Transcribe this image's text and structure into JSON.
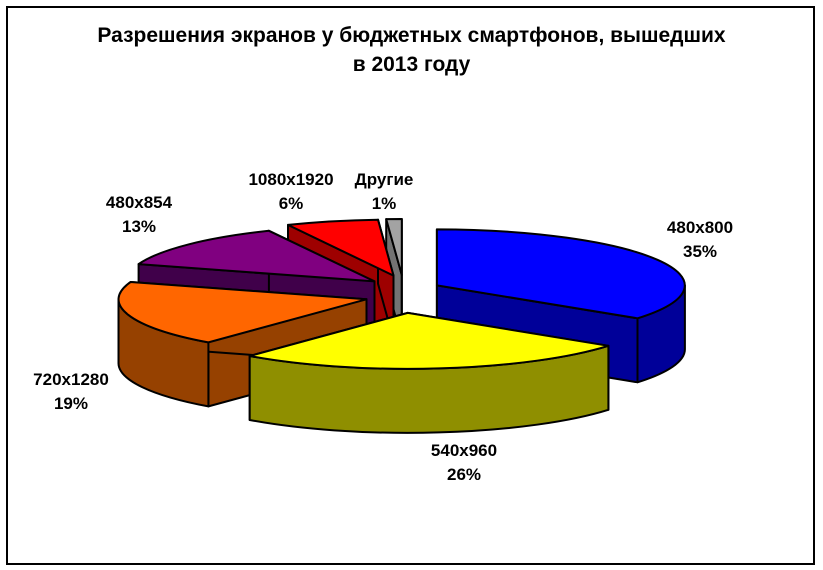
{
  "title": {
    "line1": "Разрешения экранов у бюджетных смартфонов, вышедших",
    "line2": "в 2013 году"
  },
  "chart_data": {
    "type": "pie",
    "style": "3d-exploded-pie",
    "title": "Разрешения экранов у бюджетных смартфонов, вышедших в 2013 году",
    "direction": "clockwise",
    "start_angle_deg": 0,
    "legend_position": "none",
    "label_format": "category + percent",
    "background": "#FFFFFF",
    "outline_color": "#000000",
    "slices": [
      {
        "label": "480x800",
        "value": 35,
        "pct_label": "35%",
        "color": "#0000FF",
        "side_color": "#000099"
      },
      {
        "label": "540x960",
        "value": 26,
        "pct_label": "26%",
        "color": "#FFFF00",
        "side_color": "#8F8F00"
      },
      {
        "label": "720x1280",
        "value": 19,
        "pct_label": "19%",
        "color": "#FF6600",
        "side_color": "#964100"
      },
      {
        "label": "480x854",
        "value": 13,
        "pct_label": "13%",
        "color": "#800080",
        "side_color": "#40004A"
      },
      {
        "label": "1080x1920",
        "value": 6,
        "pct_label": "6%",
        "color": "#FF0000",
        "side_color": "#9E0000"
      },
      {
        "label": "Другие",
        "value": 1,
        "pct_label": "1%",
        "color": "#A3A3A3",
        "side_color": "#737373"
      }
    ]
  }
}
